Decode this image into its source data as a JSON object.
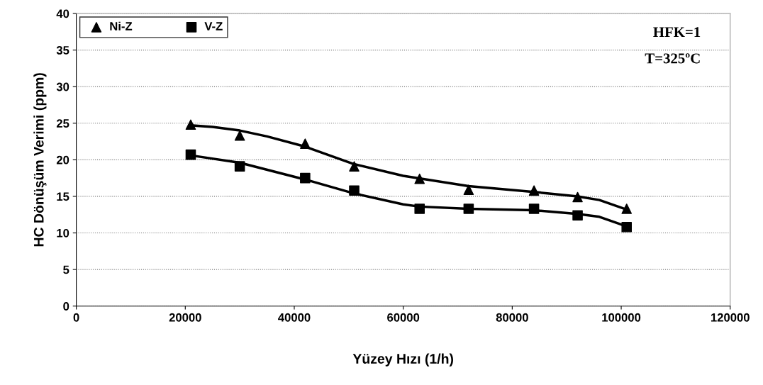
{
  "chart_data": {
    "type": "scatter",
    "xlabel": "Yüzey Hızı (1/h)",
    "ylabel": "HC Dönüşüm Verimi (ppm)",
    "annotations": [
      "HFK=1",
      "T=325ºC"
    ],
    "xlim": [
      0,
      120000
    ],
    "xticks": [
      0,
      20000,
      40000,
      60000,
      80000,
      100000,
      120000
    ],
    "ylim": [
      0,
      40
    ],
    "yticks": [
      0,
      5,
      10,
      15,
      20,
      25,
      30,
      35,
      40
    ],
    "grid": "y",
    "legend": "top left",
    "series": [
      {
        "name": "Ni-Z",
        "marker": "triangle",
        "color": "#000000",
        "x": [
          21000,
          30000,
          42000,
          51000,
          63000,
          72000,
          84000,
          92000,
          101000
        ],
        "values": [
          24.8,
          23.3,
          22.2,
          19.1,
          17.4,
          15.9,
          15.8,
          14.9,
          13.3
        ]
      },
      {
        "name": "V-Z",
        "marker": "square",
        "color": "#000000",
        "x": [
          21000,
          30000,
          42000,
          51000,
          63000,
          72000,
          84000,
          92000,
          101000
        ],
        "values": [
          20.7,
          19.1,
          17.5,
          15.8,
          13.3,
          13.3,
          13.3,
          12.4,
          10.8
        ]
      },
      {
        "type": "line",
        "color": "#000000",
        "x": [
          21000,
          25000,
          30000,
          35000,
          42000,
          51000,
          60000,
          72000,
          84000,
          92000,
          96000,
          101000
        ],
        "values": [
          24.7,
          24.5,
          24.0,
          23.2,
          21.8,
          19.4,
          17.8,
          16.4,
          15.6,
          15.0,
          14.5,
          13.2
        ]
      },
      {
        "type": "line",
        "color": "#000000",
        "x": [
          21000,
          30000,
          42000,
          51000,
          60000,
          63000,
          72000,
          84000,
          92000,
          96000,
          101000
        ],
        "values": [
          20.6,
          19.6,
          17.3,
          15.4,
          13.9,
          13.6,
          13.3,
          13.1,
          12.6,
          12.2,
          10.9
        ]
      }
    ]
  }
}
